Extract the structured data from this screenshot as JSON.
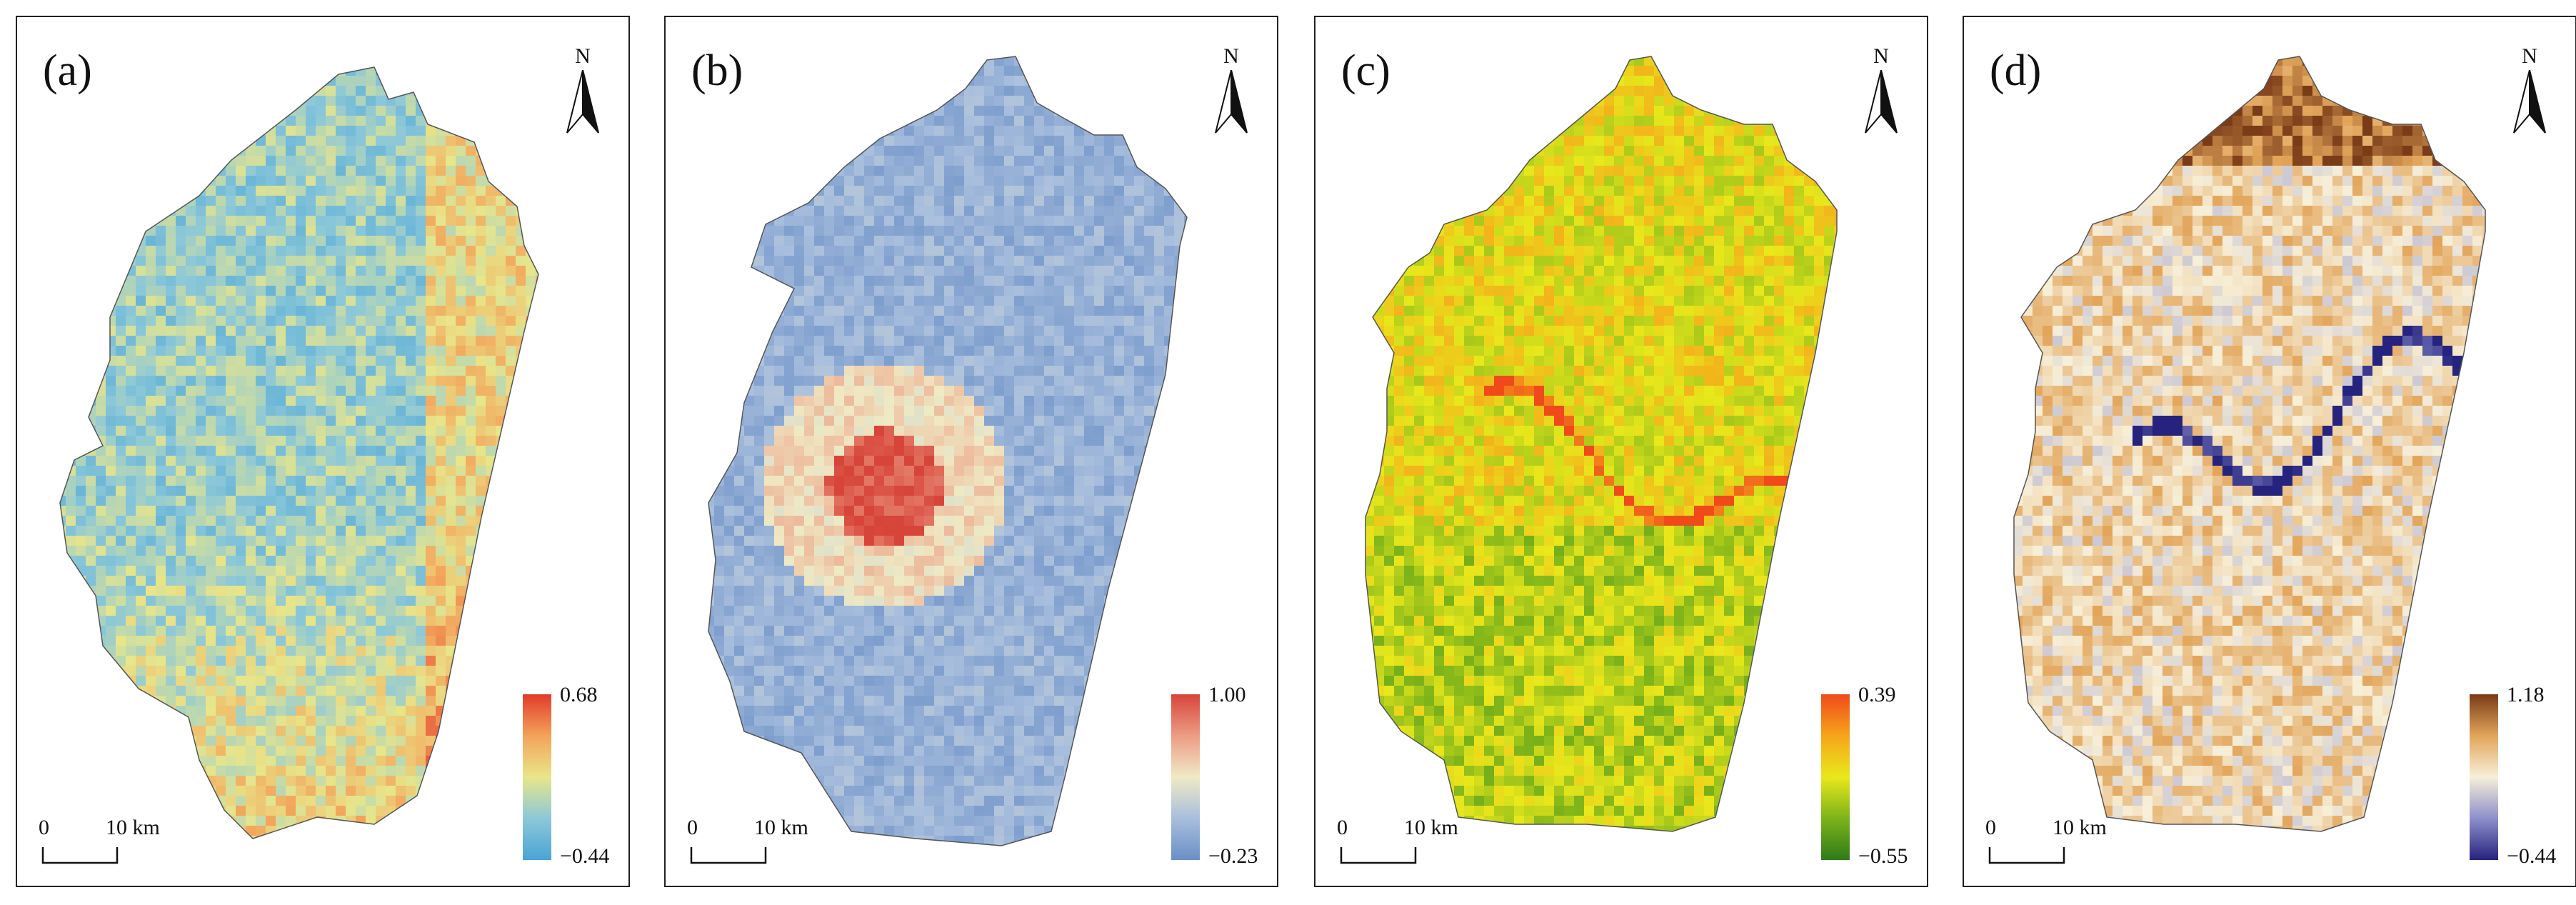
{
  "panels": [
    {
      "id": "a",
      "label": "(a)",
      "north": "N",
      "legend_max": "0.68",
      "legend_min": "−0.44",
      "colormap": [
        "#4aa3d6",
        "#8cc8d8",
        "#e8e68a",
        "#f3a35a",
        "#e23b2b"
      ],
      "scale_zero": "0",
      "scale_dist": "10 km"
    },
    {
      "id": "b",
      "label": "(b)",
      "north": "N",
      "legend_max": "1.00",
      "legend_min": "−0.23",
      "colormap": [
        "#6a8fc6",
        "#a8bedd",
        "#efeac4",
        "#ec9c84",
        "#d7453a"
      ],
      "scale_zero": "0",
      "scale_dist": "10 km"
    },
    {
      "id": "c",
      "label": "(c)",
      "north": "N",
      "legend_max": "0.39",
      "legend_min": "−0.55",
      "colormap": [
        "#2f7a1a",
        "#7cb31a",
        "#e8e81b",
        "#f5a51b",
        "#f04a1b"
      ],
      "scale_zero": "0",
      "scale_dist": "10 km"
    },
    {
      "id": "d",
      "label": "(d)",
      "north": "N",
      "legend_max": "1.18",
      "legend_min": "−0.44",
      "colormap": [
        "#25237e",
        "#8d8fcb",
        "#f7efd8",
        "#e2a55a",
        "#7a3b17"
      ],
      "scale_zero": "0",
      "scale_dist": "10 km"
    }
  ]
}
